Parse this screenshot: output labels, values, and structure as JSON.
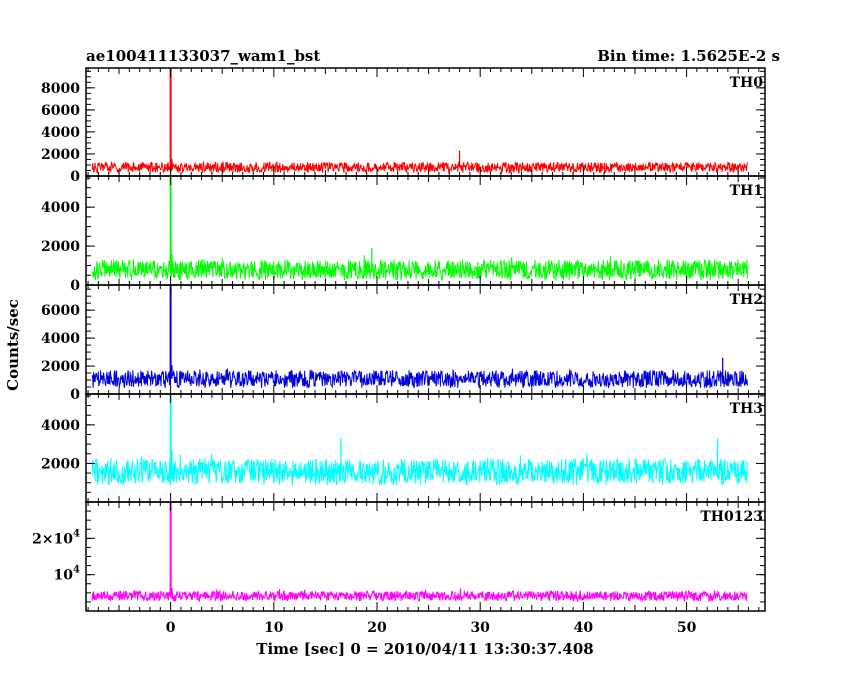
{
  "header": {
    "object": "ae100411133037_wam1_bst",
    "bin_time": "Bin time: 1.5625E-2 s"
  },
  "axes": {
    "ylabel": "Counts/sec",
    "xlabel": "Time [sec] 0 = 2010/04/11 13:30:37.408"
  },
  "chart_data": {
    "type": "line",
    "x_range": [
      -8.2,
      57.6
    ],
    "x_ticks": [
      0,
      10,
      20,
      30,
      40,
      50
    ],
    "data_start": -7.6,
    "data_end": 55.9,
    "burst_time": 0.0,
    "grid": false,
    "panels": [
      {
        "name": "TH0",
        "color": "#ff0000",
        "ylim": [
          0,
          9800
        ],
        "ticks": [
          {
            "v": 0,
            "label": "0"
          },
          {
            "v": 2000,
            "label": "2000"
          },
          {
            "v": 4000,
            "label": "4000"
          },
          {
            "v": 6000,
            "label": "6000"
          },
          {
            "v": 8000,
            "label": "8000"
          }
        ],
        "baseline": 800,
        "noise": 450,
        "peak": 9800,
        "spikes": [
          {
            "t": 28.0,
            "v": 2300
          }
        ]
      },
      {
        "name": "TH1",
        "color": "#00ff00",
        "ylim": [
          0,
          5600
        ],
        "ticks": [
          {
            "v": 0,
            "label": "0"
          },
          {
            "v": 2000,
            "label": "2000"
          },
          {
            "v": 4000,
            "label": "4000"
          }
        ],
        "baseline": 800,
        "noise": 500,
        "peak": 5600,
        "spikes": [
          {
            "t": 19.5,
            "v": 1900
          }
        ]
      },
      {
        "name": "TH2",
        "color": "#0000dd",
        "ylim": [
          0,
          7800
        ],
        "ticks": [
          {
            "v": 0,
            "label": "0"
          },
          {
            "v": 2000,
            "label": "2000"
          },
          {
            "v": 4000,
            "label": "4000"
          },
          {
            "v": 6000,
            "label": "6000"
          }
        ],
        "baseline": 1100,
        "noise": 600,
        "peak": 7800,
        "spikes": [
          {
            "t": 53.5,
            "v": 2600
          }
        ]
      },
      {
        "name": "TH3",
        "color": "#00ffff",
        "ylim": [
          0,
          5600
        ],
        "ticks": [
          {
            "v": 2000,
            "label": "2000"
          },
          {
            "v": 4000,
            "label": "4000"
          }
        ],
        "baseline": 1600,
        "noise": 650,
        "peak": 5600,
        "spikes": [
          {
            "t": 16.5,
            "v": 3300
          },
          {
            "t": 53.0,
            "v": 3300
          }
        ]
      },
      {
        "name": "TH0123",
        "color": "#ff00ff",
        "ylim": [
          0,
          30000
        ],
        "ticks": [
          {
            "v": 10000,
            "label": "10⁴",
            "mant": "",
            "exp": "4"
          },
          {
            "v": 20000,
            "label": "2×10⁴",
            "mant": "2×",
            "exp": "4"
          }
        ],
        "baseline": 4200,
        "noise": 1300,
        "peak": 30000,
        "spikes": []
      }
    ]
  }
}
